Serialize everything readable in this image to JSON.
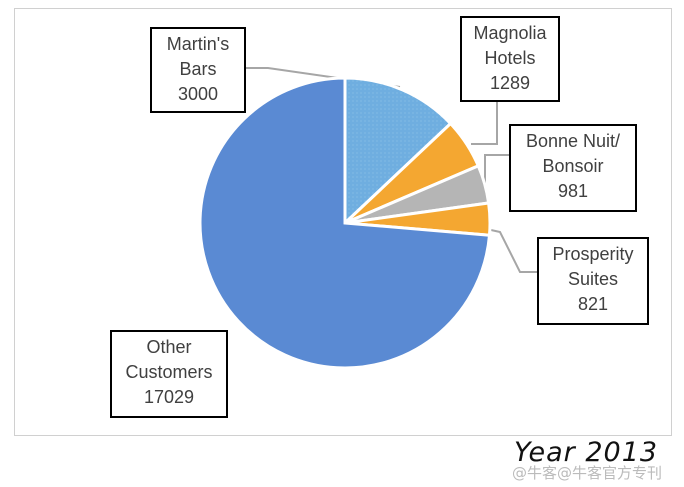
{
  "chart_data": {
    "type": "pie",
    "title": "",
    "caption": "Year 2013",
    "slices": [
      {
        "label_lines": [
          "Martin's",
          "Bars"
        ],
        "value": 3000,
        "display_value": "3000",
        "color": "#6FAEE0",
        "pattern": "dotted"
      },
      {
        "label_lines": [
          "Magnolia",
          "Hotels"
        ],
        "value": 1289,
        "display_value": "1289",
        "color": "#F4A731"
      },
      {
        "label_lines": [
          "Bonne Nuit/",
          "Bonsoir"
        ],
        "value": 981,
        "display_value": "981",
        "color": "#B5B5B5"
      },
      {
        "label_lines": [
          "Prosperity",
          "Suites"
        ],
        "value": 821,
        "display_value": "821",
        "color": "#F4A731"
      },
      {
        "label_lines": [
          "Other",
          "Customers"
        ],
        "value": 17029,
        "display_value": "17029",
        "color": "#5A8AD3"
      }
    ],
    "legend": "none",
    "data_labels": "callout boxes with leader lines"
  },
  "watermark": "@牛客@牛客官方专刊"
}
